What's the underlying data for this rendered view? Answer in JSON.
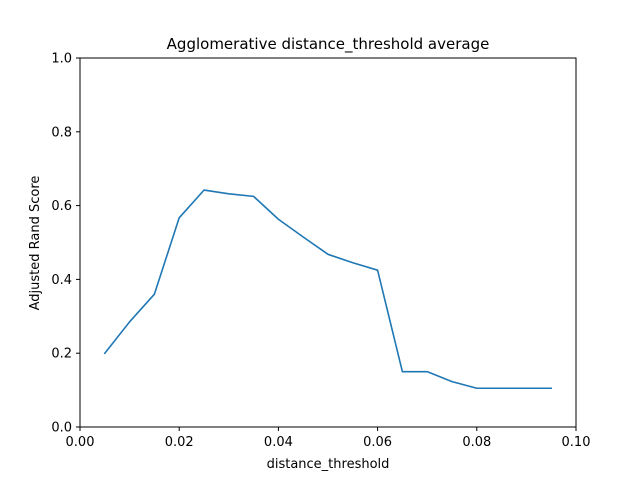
{
  "chart_data": {
    "type": "line",
    "title": "Agglomerative distance_threshold average",
    "xlabel": "distance_threshold",
    "ylabel": "Adjusted Rand Score",
    "xlim": [
      0.0,
      0.1
    ],
    "ylim": [
      0.0,
      1.0
    ],
    "xticks": [
      "0.00",
      "0.02",
      "0.04",
      "0.06",
      "0.08",
      "0.10"
    ],
    "yticks": [
      "0.0",
      "0.2",
      "0.4",
      "0.6",
      "0.8",
      "1.0"
    ],
    "xtick_values": [
      0.0,
      0.02,
      0.04,
      0.06,
      0.08,
      0.1
    ],
    "ytick_values": [
      0.0,
      0.2,
      0.4,
      0.6,
      0.8,
      1.0
    ],
    "grid": false,
    "series": [
      {
        "color": "#1f77b4",
        "x": [
          0.005,
          0.01,
          0.015,
          0.02,
          0.025,
          0.03,
          0.035,
          0.04,
          0.045,
          0.05,
          0.055,
          0.06,
          0.065,
          0.07,
          0.075,
          0.08,
          0.085,
          0.09,
          0.095
        ],
        "y": [
          0.2,
          0.285,
          0.36,
          0.567,
          0.642,
          0.632,
          0.625,
          0.563,
          0.515,
          0.468,
          0.445,
          0.425,
          0.15,
          0.15,
          0.123,
          0.105,
          0.105,
          0.105,
          0.105
        ]
      }
    ]
  }
}
